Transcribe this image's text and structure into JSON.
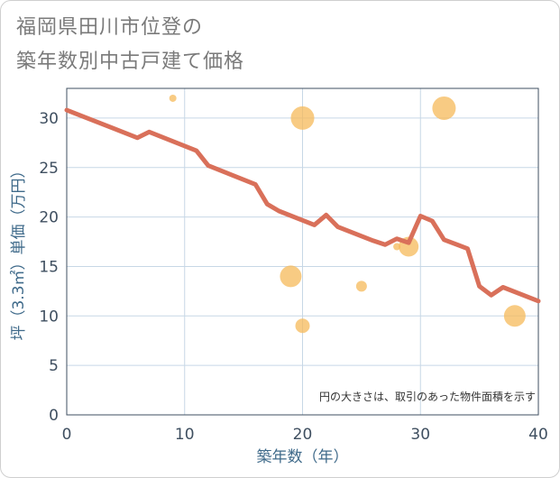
{
  "header": {
    "title_line1": "福岡県田川市位登の",
    "title_line2": "築年数別中古戸建て価格"
  },
  "chart_data": {
    "type": "scatter",
    "title": "福岡県田川市位登の築年数別中古戸建て価格",
    "xlabel": "築年数（年）",
    "ylabel": "坪（3.3㎡）単価（万円）",
    "xlim": [
      0,
      40
    ],
    "ylim": [
      0,
      33
    ],
    "xticks": [
      0,
      10,
      20,
      30,
      40
    ],
    "yticks": [
      0,
      5,
      10,
      15,
      20,
      25,
      30
    ],
    "grid": true,
    "note": "円の大きさは、取引のあった物件面積を示す",
    "colors": {
      "line": "#d9705a",
      "bubble": "#f5b95a",
      "grid": "#c7d7e6",
      "axis": "#3f4f60"
    },
    "scatter": [
      {
        "x": 9,
        "y": 32,
        "size": 4
      },
      {
        "x": 20,
        "y": 30,
        "size": 13
      },
      {
        "x": 32,
        "y": 31,
        "size": 13
      },
      {
        "x": 19,
        "y": 14,
        "size": 12
      },
      {
        "x": 25,
        "y": 13,
        "size": 6
      },
      {
        "x": 28,
        "y": 17,
        "size": 4
      },
      {
        "x": 29,
        "y": 17,
        "size": 11
      },
      {
        "x": 20,
        "y": 9,
        "size": 8
      },
      {
        "x": 38,
        "y": 10,
        "size": 12
      }
    ],
    "trend": {
      "x": [
        0,
        6,
        7,
        11,
        12,
        16,
        17,
        18,
        21,
        22,
        23,
        26,
        27,
        28,
        29,
        30,
        31,
        32,
        34,
        35,
        36,
        37,
        40
      ],
      "y": [
        30.8,
        28,
        28.6,
        26.7,
        25.2,
        23.3,
        21.3,
        20.6,
        19.2,
        20.2,
        19.0,
        17.6,
        17.2,
        17.8,
        17.4,
        20.1,
        19.6,
        17.7,
        16.8,
        13.0,
        12.1,
        12.9,
        11.5
      ]
    }
  }
}
